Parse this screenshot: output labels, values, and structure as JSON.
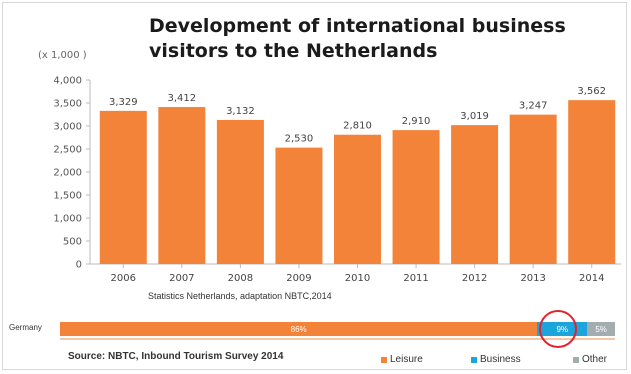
{
  "title": "Development of international business visitors to the Netherlands",
  "unit_label": "(x 1,000 )",
  "source_small": "Statistics Netherlands, adaptation NBTC,2014",
  "chart_data": {
    "type": "bar",
    "categories": [
      "2006",
      "2007",
      "2008",
      "2009",
      "2010",
      "2011",
      "2012",
      "2013",
      "2014"
    ],
    "values": [
      3329,
      3412,
      3132,
      2530,
      2810,
      2910,
      3019,
      3247,
      3562
    ],
    "value_labels": [
      "3,329",
      "3,412",
      "3,132",
      "2,530",
      "2,810",
      "2,910",
      "3,019",
      "3,247",
      "3,562"
    ],
    "ylim": [
      0,
      4000
    ],
    "yticks": [
      0,
      500,
      1000,
      1500,
      2000,
      2500,
      3000,
      3500,
      4000
    ],
    "ytick_labels": [
      "0",
      "500",
      "1,000",
      "1,500",
      "2,000",
      "2,500",
      "3,000",
      "3,500",
      "4,000"
    ],
    "bar_color": "#f28339",
    "grid": false
  },
  "stacked_bar": {
    "type": "bar",
    "stacked": true,
    "category": "Germany",
    "segments": [
      {
        "name": "Leisure",
        "value": 86,
        "label": "86%",
        "color": "#f28339"
      },
      {
        "name": "Business",
        "value": 9,
        "label": "9%",
        "color": "#1ba5dc"
      },
      {
        "name": "Other",
        "value": 5,
        "label": "5%",
        "color": "#a3adb0"
      }
    ]
  },
  "source_main": "Source: NBTC, Inbound Tourism Survey 2014",
  "legend": [
    {
      "label": "Leisure",
      "color": "#f28339"
    },
    {
      "label": "Business",
      "color": "#1ba5dc"
    },
    {
      "label": "Other",
      "color": "#a3adb0"
    }
  ],
  "highlight_color": "#e3222b"
}
